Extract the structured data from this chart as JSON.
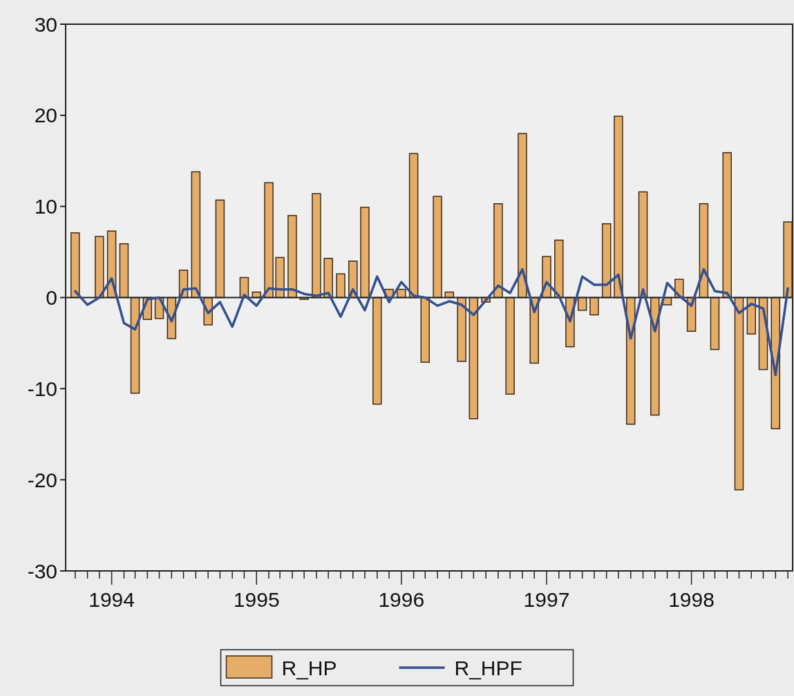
{
  "chart_data": {
    "type": "bar",
    "x": [
      "1993-10",
      "1993-11",
      "1993-12",
      "1994-01",
      "1994-02",
      "1994-03",
      "1994-04",
      "1994-05",
      "1994-06",
      "1994-07",
      "1994-08",
      "1994-09",
      "1994-10",
      "1994-11",
      "1994-12",
      "1995-01",
      "1995-02",
      "1995-03",
      "1995-04",
      "1995-05",
      "1995-06",
      "1995-07",
      "1995-08",
      "1995-09",
      "1995-10",
      "1995-11",
      "1995-12",
      "1996-01",
      "1996-02",
      "1996-03",
      "1996-04",
      "1996-05",
      "1996-06",
      "1996-07",
      "1996-08",
      "1996-09",
      "1996-10",
      "1996-11",
      "1996-12",
      "1997-01",
      "1997-02",
      "1997-03",
      "1997-04",
      "1997-05",
      "1997-06",
      "1997-07",
      "1997-08",
      "1997-09",
      "1997-10",
      "1997-11",
      "1997-12",
      "1998-01",
      "1998-02",
      "1998-03",
      "1998-04",
      "1998-05",
      "1998-06",
      "1998-07",
      "1998-08",
      "1998-09"
    ],
    "series": [
      {
        "name": "R_HP",
        "color": "#e5ad68",
        "values": [
          7.1,
          0,
          6.7,
          7.3,
          5.9,
          -10.5,
          -2.4,
          -2.3,
          -4.5,
          3.0,
          13.8,
          -3.0,
          10.7,
          0,
          2.2,
          0.6,
          12.6,
          4.4,
          9.0,
          -0.2,
          11.4,
          4.3,
          2.6,
          4.0,
          9.9,
          -11.7,
          0.9,
          0.9,
          15.8,
          -7.1,
          11.1,
          0.6,
          -7.0,
          -13.3,
          -0.5,
          10.3,
          -10.6,
          18.0,
          -7.2,
          4.5,
          6.3,
          -5.4,
          -1.4,
          -1.9,
          8.1,
          19.9,
          -13.9,
          11.6,
          -12.9,
          -0.8,
          2.0,
          -3.7,
          10.3,
          -5.7,
          15.9,
          -21.1,
          -4.0,
          -7.9,
          -14.4,
          8.3
        ]
      },
      {
        "name": "R_HPF",
        "type": "line",
        "color": "#34508f",
        "values": [
          0.7,
          -0.8,
          0,
          2.1,
          -2.8,
          -3.5,
          -0.2,
          0,
          -2.6,
          0.9,
          1.0,
          -1.7,
          -0.5,
          -3.2,
          0.3,
          -0.9,
          1.0,
          0.9,
          0.9,
          0.4,
          0.2,
          0.5,
          -2.1,
          0.9,
          -1.4,
          2.3,
          -0.5,
          1.7,
          0.2,
          0,
          -0.9,
          -0.4,
          -0.8,
          -1.9,
          -0.3,
          1.3,
          0.5,
          3.1,
          -1.6,
          1.7,
          0.2,
          -2.6,
          2.3,
          1.4,
          1.4,
          2.5,
          -4.5,
          0.9,
          -3.7,
          1.6,
          0.2,
          -0.9,
          3.1,
          0.7,
          0.5,
          -1.7,
          -0.7,
          -1.2,
          -8.5,
          1.0
        ]
      }
    ],
    "xlim": [
      "1993-09-07",
      "1998-09-13"
    ],
    "xticks": [
      {
        "value": "1993-10",
        "label": null
      },
      {
        "value": "1993-11",
        "label": null
      },
      {
        "value": "1993-12",
        "label": null
      },
      {
        "value": "1994-01",
        "label": "1994"
      },
      {
        "value": "1994-02",
        "label": null
      },
      {
        "value": "1994-03",
        "label": null
      },
      {
        "value": "1994-04",
        "label": null
      },
      {
        "value": "1994-05",
        "label": null
      },
      {
        "value": "1994-06",
        "label": null
      },
      {
        "value": "1994-07",
        "label": null
      },
      {
        "value": "1994-08",
        "label": null
      },
      {
        "value": "1994-09",
        "label": null
      },
      {
        "value": "1994-10",
        "label": null
      },
      {
        "value": "1994-11",
        "label": null
      },
      {
        "value": "1994-12",
        "label": null
      },
      {
        "value": "1995-01",
        "label": "1995"
      },
      {
        "value": "1995-02",
        "label": null
      },
      {
        "value": "1995-03",
        "label": null
      },
      {
        "value": "1995-04",
        "label": null
      },
      {
        "value": "1995-05",
        "label": null
      },
      {
        "value": "1995-06",
        "label": null
      },
      {
        "value": "1995-07",
        "label": null
      },
      {
        "value": "1995-08",
        "label": null
      },
      {
        "value": "1995-09",
        "label": null
      },
      {
        "value": "1995-10",
        "label": null
      },
      {
        "value": "1995-11",
        "label": null
      },
      {
        "value": "1995-12",
        "label": null
      },
      {
        "value": "1996-01",
        "label": "1996"
      },
      {
        "value": "1996-02",
        "label": null
      },
      {
        "value": "1996-03",
        "label": null
      },
      {
        "value": "1996-04",
        "label": null
      },
      {
        "value": "1996-05",
        "label": null
      },
      {
        "value": "1996-06",
        "label": null
      },
      {
        "value": "1996-07",
        "label": null
      },
      {
        "value": "1996-08",
        "label": null
      },
      {
        "value": "1996-09",
        "label": null
      },
      {
        "value": "1996-10",
        "label": null
      },
      {
        "value": "1996-11",
        "label": null
      },
      {
        "value": "1996-12",
        "label": null
      },
      {
        "value": "1997-01",
        "label": "1997"
      },
      {
        "value": "1997-02",
        "label": null
      },
      {
        "value": "1997-03",
        "label": null
      },
      {
        "value": "1997-04",
        "label": null
      },
      {
        "value": "1997-05",
        "label": null
      },
      {
        "value": "1997-06",
        "label": null
      },
      {
        "value": "1997-07",
        "label": null
      },
      {
        "value": "1997-08",
        "label": null
      },
      {
        "value": "1997-09",
        "label": null
      },
      {
        "value": "1997-10",
        "label": null
      },
      {
        "value": "1997-11",
        "label": null
      },
      {
        "value": "1997-12",
        "label": null
      },
      {
        "value": "1998-01",
        "label": "1998"
      },
      {
        "value": "1998-02",
        "label": null
      },
      {
        "value": "1998-03",
        "label": null
      },
      {
        "value": "1998-04",
        "label": null
      },
      {
        "value": "1998-05",
        "label": null
      },
      {
        "value": "1998-06",
        "label": null
      },
      {
        "value": "1998-07",
        "label": null
      },
      {
        "value": "1998-08",
        "label": null
      },
      {
        "value": "1998-09",
        "label": null
      }
    ],
    "ylim": [
      -30,
      30
    ],
    "yticks": [
      -30,
      -20,
      -10,
      0,
      10,
      20,
      30
    ],
    "ref_lines": [
      {
        "axis": "y",
        "value": 0,
        "color": "#222222"
      }
    ],
    "legend": "bottom",
    "grid": false
  }
}
